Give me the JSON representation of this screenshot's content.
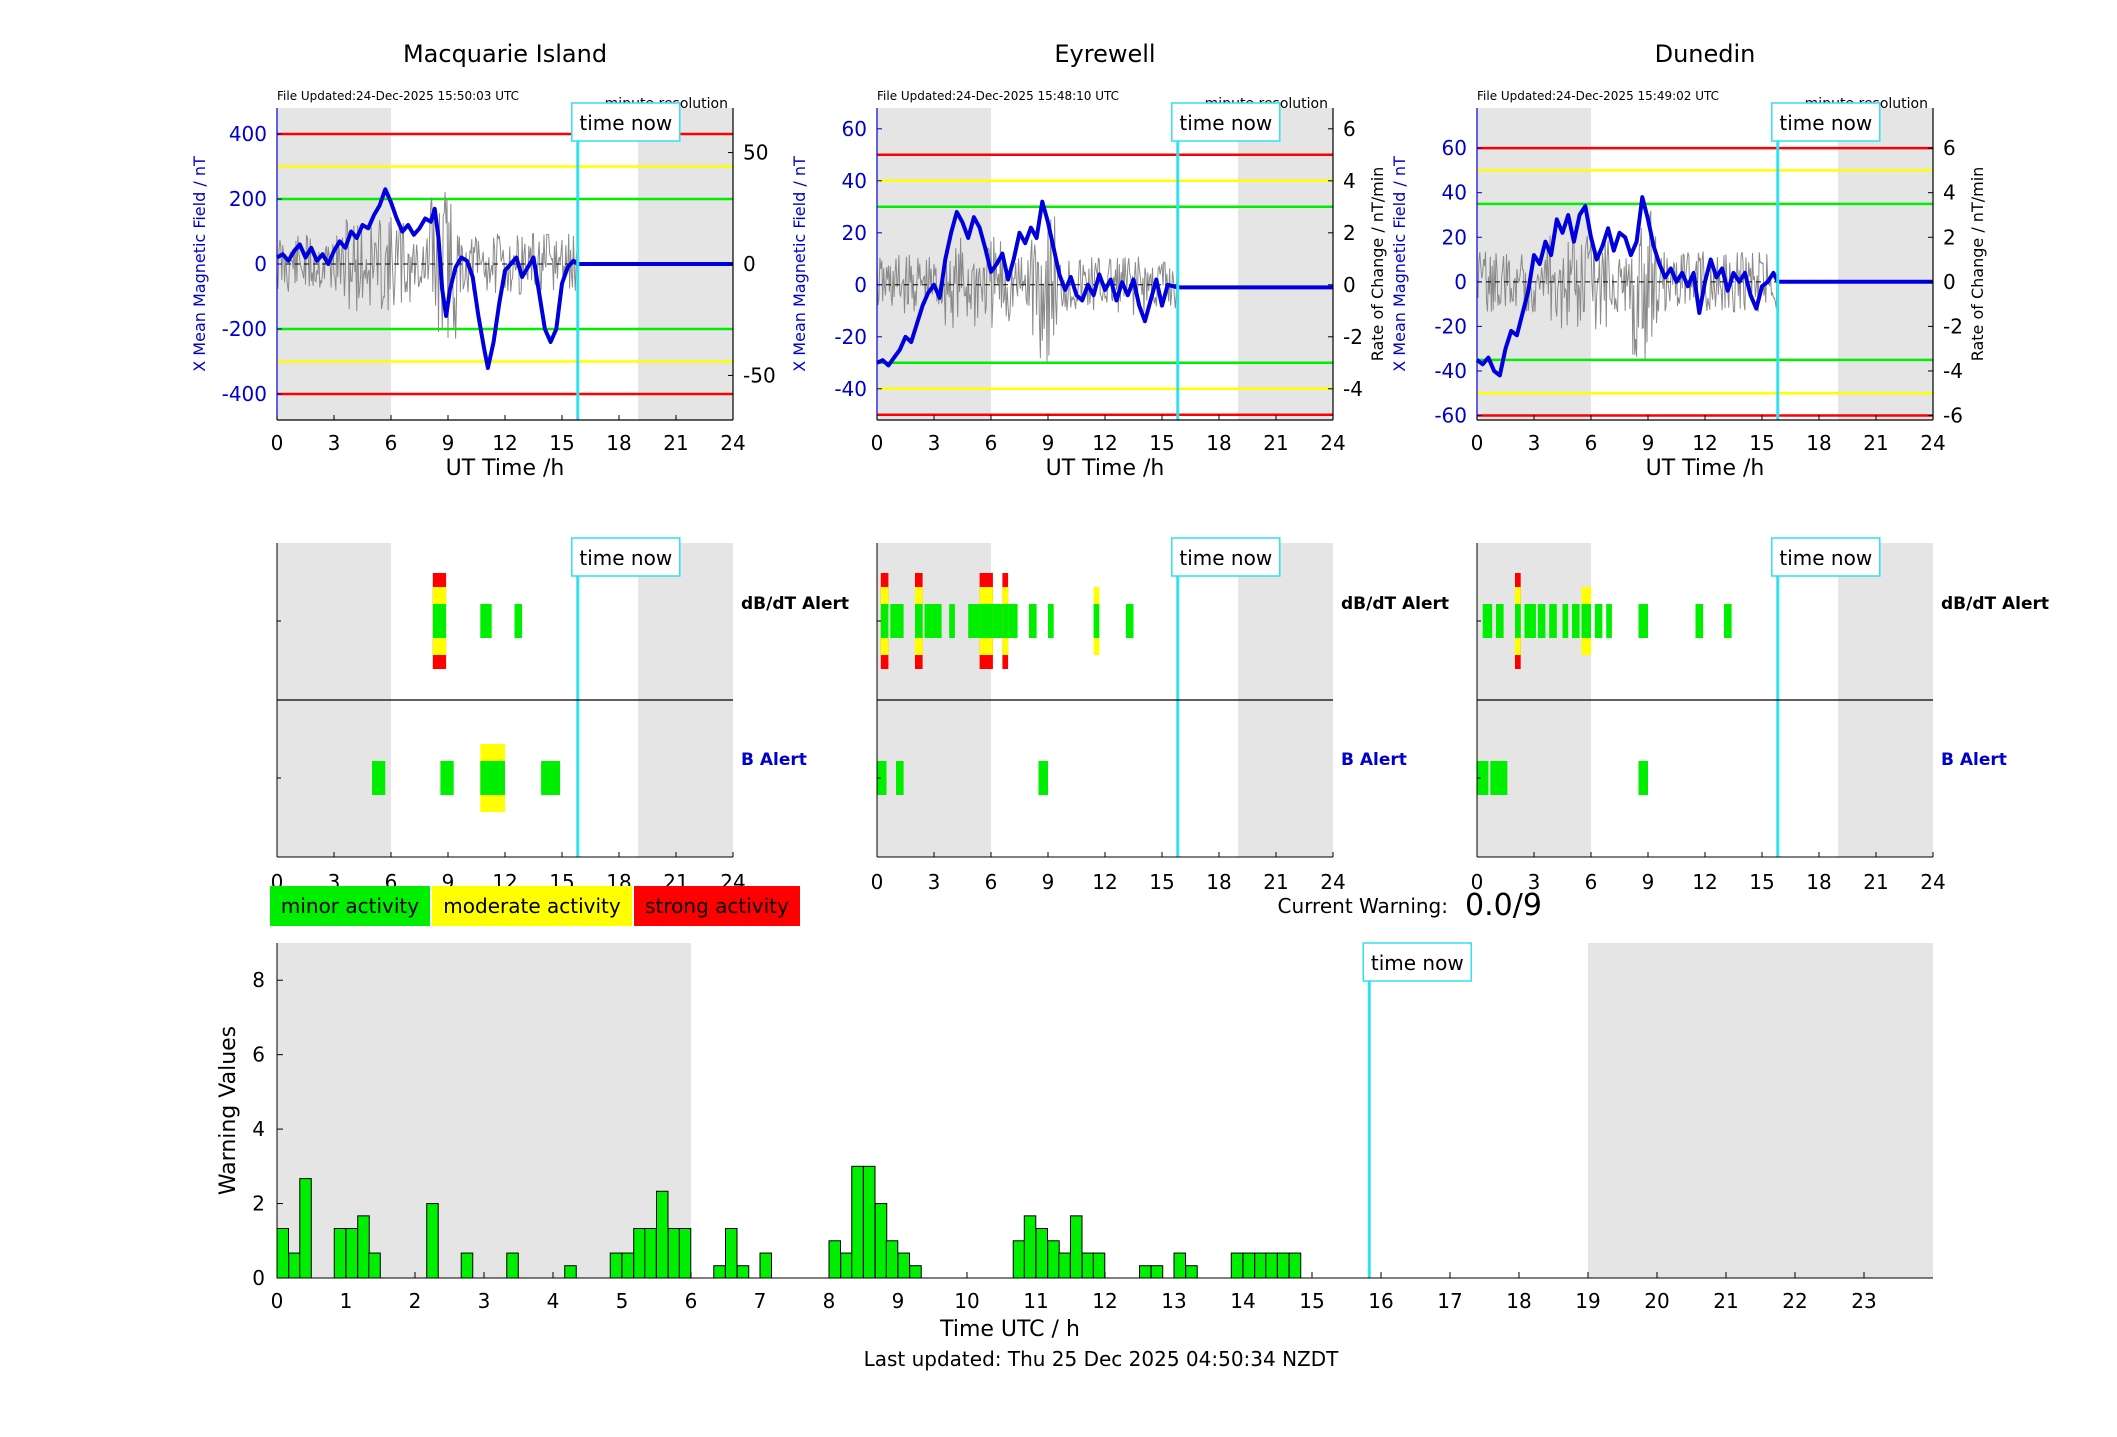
{
  "colors": {
    "night_shade": "#e5e5e5",
    "field_line": "#0000dd",
    "rate_trace": "#8a8a8a",
    "minor": "#00ee00",
    "moderate": "#ffff00",
    "strong": "#ff0000",
    "time_now": "#33e0f0",
    "left_axis": "#0000cc"
  },
  "stations": [
    {
      "id": "macquarie",
      "title": "Macquarie Island",
      "file_updated": "File Updated:24-Dec-2025 15:50:03 UTC",
      "resolution": "minute resolution",
      "ylabel_left": "X Mean Magnetic Field / nT",
      "ylabel_right": "",
      "xlabel": "UT Time /h",
      "ylim_left": [
        -480,
        480
      ],
      "ytick_left": [
        -400,
        -200,
        0,
        200,
        400
      ],
      "ylim_right": [
        -70,
        70
      ],
      "ytick_right": [
        -50,
        0,
        50
      ],
      "thresholds": {
        "red": 400,
        "yellow": 300,
        "green": 200
      },
      "night": [
        [
          0,
          6
        ],
        [
          19,
          24
        ]
      ],
      "now": 15.83,
      "field": [
        [
          0,
          20
        ],
        [
          0.3,
          30
        ],
        [
          0.6,
          10
        ],
        [
          0.9,
          40
        ],
        [
          1.2,
          60
        ],
        [
          1.5,
          20
        ],
        [
          1.8,
          50
        ],
        [
          2.1,
          10
        ],
        [
          2.4,
          30
        ],
        [
          2.7,
          0
        ],
        [
          3.0,
          40
        ],
        [
          3.3,
          70
        ],
        [
          3.6,
          50
        ],
        [
          3.9,
          100
        ],
        [
          4.2,
          80
        ],
        [
          4.5,
          120
        ],
        [
          4.8,
          110
        ],
        [
          5.1,
          150
        ],
        [
          5.4,
          180
        ],
        [
          5.7,
          230
        ],
        [
          6.0,
          190
        ],
        [
          6.3,
          140
        ],
        [
          6.6,
          100
        ],
        [
          6.9,
          120
        ],
        [
          7.2,
          90
        ],
        [
          7.5,
          110
        ],
        [
          7.8,
          140
        ],
        [
          8.1,
          130
        ],
        [
          8.3,
          170
        ],
        [
          8.5,
          80
        ],
        [
          8.7,
          -80
        ],
        [
          8.9,
          -160
        ],
        [
          9.1,
          -80
        ],
        [
          9.4,
          -10
        ],
        [
          9.7,
          20
        ],
        [
          10.0,
          10
        ],
        [
          10.3,
          -40
        ],
        [
          10.6,
          -160
        ],
        [
          10.9,
          -260
        ],
        [
          11.1,
          -320
        ],
        [
          11.4,
          -240
        ],
        [
          11.7,
          -120
        ],
        [
          12.0,
          -20
        ],
        [
          12.3,
          0
        ],
        [
          12.6,
          20
        ],
        [
          12.9,
          -40
        ],
        [
          13.2,
          -10
        ],
        [
          13.5,
          20
        ],
        [
          13.8,
          -90
        ],
        [
          14.1,
          -200
        ],
        [
          14.4,
          -240
        ],
        [
          14.7,
          -200
        ],
        [
          15.0,
          -60
        ],
        [
          15.3,
          -10
        ],
        [
          15.6,
          10
        ],
        [
          15.83,
          0
        ],
        [
          24,
          0
        ]
      ],
      "dbdt_bars": [
        {
          "start": 8.2,
          "end": 8.9,
          "level": "strong"
        },
        {
          "start": 10.7,
          "end": 11.3,
          "level": "minor"
        },
        {
          "start": 12.5,
          "end": 12.9,
          "level": "minor"
        }
      ],
      "b_bars": [
        {
          "start": 5.0,
          "end": 5.7,
          "level": "minor"
        },
        {
          "start": 8.6,
          "end": 9.3,
          "level": "minor"
        },
        {
          "start": 10.7,
          "end": 12.0,
          "level": "moderate"
        },
        {
          "start": 13.9,
          "end": 14.9,
          "level": "minor"
        }
      ]
    },
    {
      "id": "eyrewell",
      "title": "Eyrewell",
      "file_updated": "File Updated:24-Dec-2025 15:48:10 UTC",
      "resolution": "minute resolution",
      "ylabel_left": "X Mean Magnetic Field / nT",
      "ylabel_right": "Rate of Change / nT/min",
      "xlabel": "UT Time /h",
      "ylim_left": [
        -52,
        68
      ],
      "ytick_left": [
        -40,
        -20,
        0,
        20,
        40,
        60
      ],
      "ylim_right": [
        -5.2,
        6.8
      ],
      "ytick_right": [
        -4,
        -2,
        0,
        2,
        4,
        6
      ],
      "thresholds": {
        "red": 50,
        "yellow": 40,
        "green": 30
      },
      "thresholds_asym": {
        "green_low": -31,
        "yellow_low": -41,
        "red_low": -52
      },
      "night": [
        [
          0,
          6
        ],
        [
          19,
          24
        ]
      ],
      "now": 15.83,
      "field": [
        [
          0,
          -30
        ],
        [
          0.3,
          -29
        ],
        [
          0.6,
          -31
        ],
        [
          0.9,
          -28
        ],
        [
          1.2,
          -25
        ],
        [
          1.5,
          -20
        ],
        [
          1.8,
          -22
        ],
        [
          2.1,
          -15
        ],
        [
          2.4,
          -8
        ],
        [
          2.7,
          -3
        ],
        [
          3.0,
          0
        ],
        [
          3.3,
          -5
        ],
        [
          3.6,
          10
        ],
        [
          3.9,
          20
        ],
        [
          4.2,
          28
        ],
        [
          4.5,
          24
        ],
        [
          4.8,
          18
        ],
        [
          5.1,
          26
        ],
        [
          5.4,
          22
        ],
        [
          5.7,
          14
        ],
        [
          6.0,
          5
        ],
        [
          6.3,
          8
        ],
        [
          6.6,
          12
        ],
        [
          6.9,
          2
        ],
        [
          7.2,
          10
        ],
        [
          7.5,
          20
        ],
        [
          7.8,
          16
        ],
        [
          8.1,
          22
        ],
        [
          8.4,
          18
        ],
        [
          8.7,
          32
        ],
        [
          9.0,
          24
        ],
        [
          9.3,
          14
        ],
        [
          9.6,
          4
        ],
        [
          9.9,
          -2
        ],
        [
          10.2,
          3
        ],
        [
          10.5,
          -4
        ],
        [
          10.8,
          -6
        ],
        [
          11.1,
          0
        ],
        [
          11.4,
          -4
        ],
        [
          11.7,
          4
        ],
        [
          12.0,
          -2
        ],
        [
          12.3,
          2
        ],
        [
          12.6,
          -6
        ],
        [
          12.9,
          1
        ],
        [
          13.2,
          -4
        ],
        [
          13.5,
          2
        ],
        [
          13.8,
          -8
        ],
        [
          14.1,
          -14
        ],
        [
          14.4,
          -6
        ],
        [
          14.7,
          2
        ],
        [
          15.0,
          -8
        ],
        [
          15.3,
          0
        ],
        [
          15.83,
          -1
        ],
        [
          24,
          -1
        ]
      ],
      "dbdt_bars": [
        {
          "start": 0.2,
          "end": 0.6,
          "level": "strong"
        },
        {
          "start": 0.7,
          "end": 1.4,
          "level": "minor"
        },
        {
          "start": 2.0,
          "end": 2.4,
          "level": "strong"
        },
        {
          "start": 2.5,
          "end": 3.4,
          "level": "minor"
        },
        {
          "start": 3.8,
          "end": 4.1,
          "level": "minor"
        },
        {
          "start": 4.8,
          "end": 5.4,
          "level": "minor"
        },
        {
          "start": 5.4,
          "end": 6.1,
          "level": "strong"
        },
        {
          "start": 6.1,
          "end": 6.6,
          "level": "minor"
        },
        {
          "start": 6.6,
          "end": 6.9,
          "level": "strong"
        },
        {
          "start": 6.9,
          "end": 7.4,
          "level": "minor"
        },
        {
          "start": 8.0,
          "end": 8.4,
          "level": "minor"
        },
        {
          "start": 9.0,
          "end": 9.3,
          "level": "minor"
        },
        {
          "start": 11.4,
          "end": 11.7,
          "level": "moderate"
        },
        {
          "start": 13.1,
          "end": 13.5,
          "level": "minor"
        }
      ],
      "b_bars": [
        {
          "start": 0.0,
          "end": 0.5,
          "level": "minor"
        },
        {
          "start": 1.0,
          "end": 1.4,
          "level": "minor"
        },
        {
          "start": 8.5,
          "end": 9.0,
          "level": "minor"
        }
      ]
    },
    {
      "id": "dunedin",
      "title": "Dunedin",
      "file_updated": "File Updated:24-Dec-2025 15:49:02 UTC",
      "resolution": "minute resolution",
      "ylabel_left": "X Mean Magnetic Field / nT",
      "ylabel_right": "Rate of Change / nT/min",
      "xlabel": "UT Time /h",
      "ylim_left": [
        -62,
        78
      ],
      "ytick_left": [
        -60,
        -40,
        -20,
        0,
        20,
        40,
        60
      ],
      "ylim_right": [
        -6.2,
        7.8
      ],
      "ytick_right": [
        -6,
        -4,
        -2,
        0,
        2,
        4,
        6
      ],
      "thresholds": {
        "red": 60,
        "yellow": 50,
        "green": 35
      },
      "night": [
        [
          0,
          6
        ],
        [
          19,
          24
        ]
      ],
      "now": 15.83,
      "field": [
        [
          0,
          -35
        ],
        [
          0.3,
          -37
        ],
        [
          0.6,
          -34
        ],
        [
          0.9,
          -40
        ],
        [
          1.2,
          -42
        ],
        [
          1.5,
          -30
        ],
        [
          1.8,
          -22
        ],
        [
          2.1,
          -24
        ],
        [
          2.4,
          -14
        ],
        [
          2.7,
          -4
        ],
        [
          3.0,
          12
        ],
        [
          3.3,
          8
        ],
        [
          3.6,
          18
        ],
        [
          3.9,
          12
        ],
        [
          4.2,
          28
        ],
        [
          4.5,
          22
        ],
        [
          4.8,
          30
        ],
        [
          5.1,
          18
        ],
        [
          5.4,
          30
        ],
        [
          5.7,
          34
        ],
        [
          6.0,
          20
        ],
        [
          6.3,
          10
        ],
        [
          6.6,
          16
        ],
        [
          6.9,
          24
        ],
        [
          7.2,
          14
        ],
        [
          7.5,
          22
        ],
        [
          7.8,
          20
        ],
        [
          8.1,
          12
        ],
        [
          8.4,
          18
        ],
        [
          8.7,
          38
        ],
        [
          9.0,
          28
        ],
        [
          9.3,
          16
        ],
        [
          9.6,
          8
        ],
        [
          9.9,
          2
        ],
        [
          10.2,
          6
        ],
        [
          10.5,
          0
        ],
        [
          10.8,
          4
        ],
        [
          11.1,
          -2
        ],
        [
          11.4,
          4
        ],
        [
          11.7,
          -14
        ],
        [
          12.0,
          0
        ],
        [
          12.3,
          10
        ],
        [
          12.6,
          2
        ],
        [
          12.9,
          6
        ],
        [
          13.2,
          -4
        ],
        [
          13.5,
          4
        ],
        [
          13.8,
          0
        ],
        [
          14.1,
          4
        ],
        [
          14.4,
          -6
        ],
        [
          14.7,
          -12
        ],
        [
          15.0,
          -2
        ],
        [
          15.3,
          0
        ],
        [
          15.6,
          4
        ],
        [
          15.83,
          0
        ],
        [
          24,
          0
        ]
      ],
      "dbdt_bars": [
        {
          "start": 0.3,
          "end": 0.8,
          "level": "minor"
        },
        {
          "start": 1.0,
          "end": 1.4,
          "level": "minor"
        },
        {
          "start": 2.0,
          "end": 2.3,
          "level": "strong"
        },
        {
          "start": 2.5,
          "end": 3.1,
          "level": "minor"
        },
        {
          "start": 3.2,
          "end": 3.6,
          "level": "minor"
        },
        {
          "start": 3.8,
          "end": 4.2,
          "level": "minor"
        },
        {
          "start": 4.5,
          "end": 4.8,
          "level": "minor"
        },
        {
          "start": 5.0,
          "end": 5.4,
          "level": "minor"
        },
        {
          "start": 5.5,
          "end": 6.0,
          "level": "moderate"
        },
        {
          "start": 6.2,
          "end": 6.6,
          "level": "minor"
        },
        {
          "start": 6.8,
          "end": 7.1,
          "level": "minor"
        },
        {
          "start": 8.5,
          "end": 9.0,
          "level": "minor"
        },
        {
          "start": 11.5,
          "end": 11.9,
          "level": "minor"
        },
        {
          "start": 13.0,
          "end": 13.4,
          "level": "minor"
        }
      ],
      "b_bars": [
        {
          "start": 0.0,
          "end": 0.6,
          "level": "minor"
        },
        {
          "start": 0.7,
          "end": 1.6,
          "level": "minor"
        },
        {
          "start": 8.5,
          "end": 9.0,
          "level": "minor"
        }
      ]
    }
  ],
  "time_now_label": "time now",
  "alert_rows": {
    "dbdt": "dB/dT Alert",
    "b": "B Alert"
  },
  "legend": {
    "minor": "minor activity",
    "moderate": "moderate activity",
    "strong": "strong activity"
  },
  "current_warning": {
    "label": "Current Warning:",
    "value": "0.0/9"
  },
  "chart_data": {
    "type": "bar",
    "title": "",
    "xlabel": "Time UTC / h",
    "ylabel": "Warning Values",
    "xlim": [
      0,
      24
    ],
    "ylim": [
      0,
      9
    ],
    "xticks": [
      0,
      1,
      2,
      3,
      4,
      5,
      6,
      7,
      8,
      9,
      10,
      11,
      12,
      13,
      14,
      15,
      16,
      17,
      18,
      19,
      20,
      21,
      22,
      23
    ],
    "yticks": [
      0,
      2,
      4,
      6,
      8
    ],
    "bin_width": 0.1667,
    "now": 15.83,
    "night": [
      [
        0,
        6
      ],
      [
        19,
        24
      ]
    ],
    "bars": [
      [
        0.0,
        1.33
      ],
      [
        0.17,
        0.67
      ],
      [
        0.33,
        2.67
      ],
      [
        0.83,
        1.33
      ],
      [
        1.0,
        1.33
      ],
      [
        1.17,
        1.67
      ],
      [
        1.33,
        0.67
      ],
      [
        2.17,
        2.0
      ],
      [
        2.67,
        0.67
      ],
      [
        3.33,
        0.67
      ],
      [
        4.17,
        0.33
      ],
      [
        4.83,
        0.67
      ],
      [
        5.0,
        0.67
      ],
      [
        5.17,
        1.33
      ],
      [
        5.33,
        1.33
      ],
      [
        5.5,
        2.33
      ],
      [
        5.67,
        1.33
      ],
      [
        5.83,
        1.33
      ],
      [
        6.33,
        0.33
      ],
      [
        6.5,
        1.33
      ],
      [
        6.67,
        0.33
      ],
      [
        7.0,
        0.67
      ],
      [
        8.0,
        1.0
      ],
      [
        8.17,
        0.67
      ],
      [
        8.33,
        3.0
      ],
      [
        8.5,
        3.0
      ],
      [
        8.67,
        2.0
      ],
      [
        8.83,
        1.0
      ],
      [
        9.0,
        0.67
      ],
      [
        9.17,
        0.33
      ],
      [
        10.67,
        1.0
      ],
      [
        10.83,
        1.67
      ],
      [
        11.0,
        1.33
      ],
      [
        11.17,
        1.0
      ],
      [
        11.33,
        0.67
      ],
      [
        11.5,
        1.67
      ],
      [
        11.67,
        0.67
      ],
      [
        11.83,
        0.67
      ],
      [
        12.5,
        0.33
      ],
      [
        12.67,
        0.33
      ],
      [
        13.0,
        0.67
      ],
      [
        13.17,
        0.33
      ],
      [
        13.83,
        0.67
      ],
      [
        14.0,
        0.67
      ],
      [
        14.17,
        0.67
      ],
      [
        14.33,
        0.67
      ],
      [
        14.5,
        0.67
      ],
      [
        14.67,
        0.67
      ]
    ]
  },
  "last_updated": "Last updated: Thu 25 Dec 2025 04:50:34 NZDT"
}
